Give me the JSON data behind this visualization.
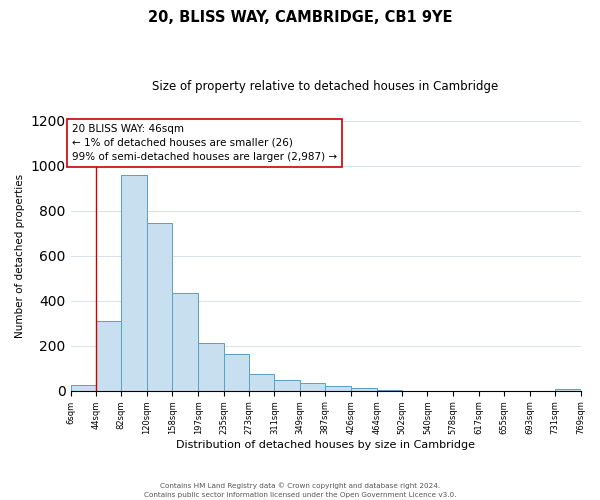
{
  "title": "20, BLISS WAY, CAMBRIDGE, CB1 9YE",
  "subtitle": "Size of property relative to detached houses in Cambridge",
  "xlabel": "Distribution of detached houses by size in Cambridge",
  "ylabel": "Number of detached properties",
  "bar_color": "#c8dff0",
  "bar_edge_color": "#5a9fc5",
  "bin_edges": [
    6,
    44,
    82,
    120,
    158,
    197,
    235,
    273,
    311,
    349,
    387,
    426,
    464,
    502,
    540,
    578,
    617,
    655,
    693,
    731,
    769
  ],
  "bin_labels": [
    "6sqm",
    "44sqm",
    "82sqm",
    "120sqm",
    "158sqm",
    "197sqm",
    "235sqm",
    "273sqm",
    "311sqm",
    "349sqm",
    "387sqm",
    "426sqm",
    "464sqm",
    "502sqm",
    "540sqm",
    "578sqm",
    "617sqm",
    "655sqm",
    "693sqm",
    "731sqm",
    "769sqm"
  ],
  "counts": [
    25,
    310,
    960,
    745,
    435,
    213,
    165,
    75,
    48,
    35,
    20,
    10,
    5,
    0,
    0,
    0,
    0,
    0,
    0,
    8
  ],
  "vline_x": 44,
  "vline_color": "#cc0000",
  "annotation_line1": "20 BLISS WAY: 46sqm",
  "annotation_line2": "← 1% of detached houses are smaller (26)",
  "annotation_line3": "99% of semi-detached houses are larger (2,987) →",
  "annotation_box_color": "#ffffff",
  "annotation_box_edge_color": "#cc0000",
  "ylim": [
    0,
    1200
  ],
  "yticks": [
    0,
    200,
    400,
    600,
    800,
    1000,
    1200
  ],
  "footer_line1": "Contains HM Land Registry data © Crown copyright and database right 2024.",
  "footer_line2": "Contains public sector information licensed under the Open Government Licence v3.0."
}
